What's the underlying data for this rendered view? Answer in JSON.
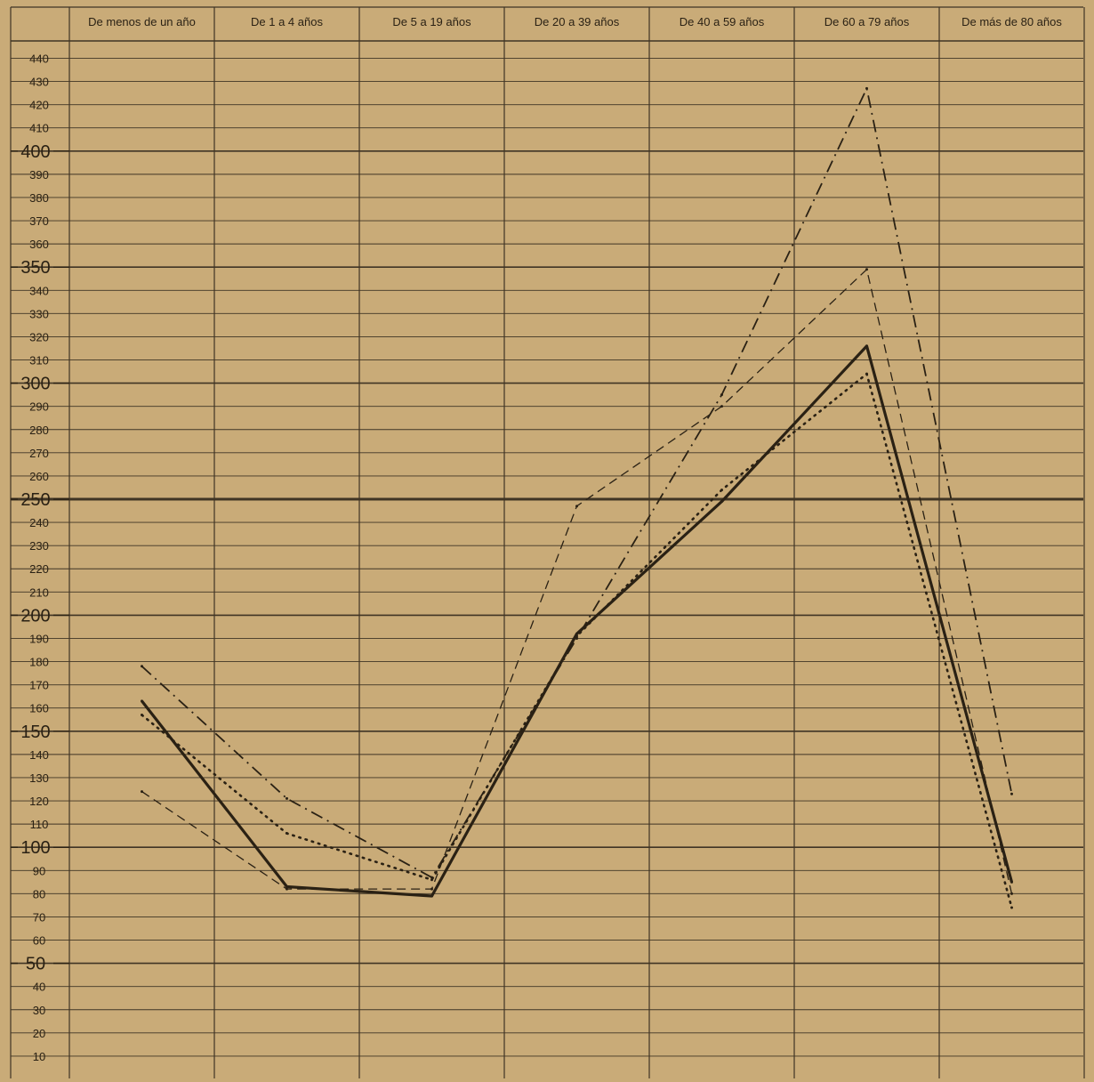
{
  "chart_data": {
    "type": "line",
    "title": "",
    "xlabel": "",
    "ylabel": "",
    "categories": [
      "De menos de un año",
      "De 1 a 4 años",
      "De 5 a 19 años",
      "De 20 a 39 años",
      "De 40 a 59 años",
      "De 60 a 79 años",
      "De más de 80 años"
    ],
    "ylim": [
      0,
      450
    ],
    "y_ticks": [
      10,
      20,
      30,
      40,
      50,
      60,
      70,
      80,
      90,
      100,
      110,
      120,
      130,
      140,
      150,
      160,
      170,
      180,
      190,
      200,
      210,
      220,
      230,
      240,
      250,
      260,
      270,
      280,
      290,
      300,
      310,
      320,
      330,
      340,
      350,
      360,
      370,
      380,
      390,
      400,
      410,
      420,
      430,
      440
    ],
    "y_major_ticks": [
      50,
      100,
      150,
      200,
      250,
      300,
      350,
      400
    ],
    "grid": true,
    "legend": "none",
    "series": [
      {
        "style": "solid",
        "values": [
          163,
          83,
          79,
          192,
          249,
          316,
          85
        ]
      },
      {
        "style": "dotted",
        "values": [
          157,
          106,
          86,
          191,
          254,
          304,
          74
        ]
      },
      {
        "style": "dashed",
        "values": [
          124,
          82,
          82,
          247,
          290,
          349,
          80
        ]
      },
      {
        "style": "dash-dot",
        "values": [
          178,
          121,
          87,
          190,
          295,
          427,
          123
        ]
      }
    ],
    "colors": {
      "background": "#c9ab78",
      "ink": "#2a2114",
      "grid": "#3f3424"
    }
  }
}
